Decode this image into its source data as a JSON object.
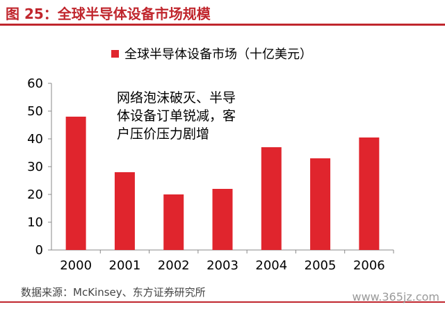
{
  "figure": {
    "title": "图 25：全球半导体设备市场规模",
    "source": "数据来源：McKinsey、东方证券研究所",
    "watermark": "www.365jz.com"
  },
  "colors": {
    "accent": "#c0262d",
    "bar": "#e0252d"
  },
  "chart_data": {
    "type": "bar",
    "categories": [
      "2000",
      "2001",
      "2002",
      "2003",
      "2004",
      "2005",
      "2006"
    ],
    "series": [
      {
        "name": "全球半导体设备市场（十亿美元）",
        "values": [
          48,
          28,
          20,
          22,
          37,
          33,
          40.5
        ]
      }
    ],
    "ylim": [
      0,
      60
    ],
    "yticks": [
      0,
      10,
      20,
      30,
      40,
      50,
      60
    ],
    "grid": false,
    "legend": "top-center",
    "annotations": [
      {
        "text": "网络泡沫破灭、半导体设备订单锐减，客户压价压力剧增"
      }
    ]
  }
}
